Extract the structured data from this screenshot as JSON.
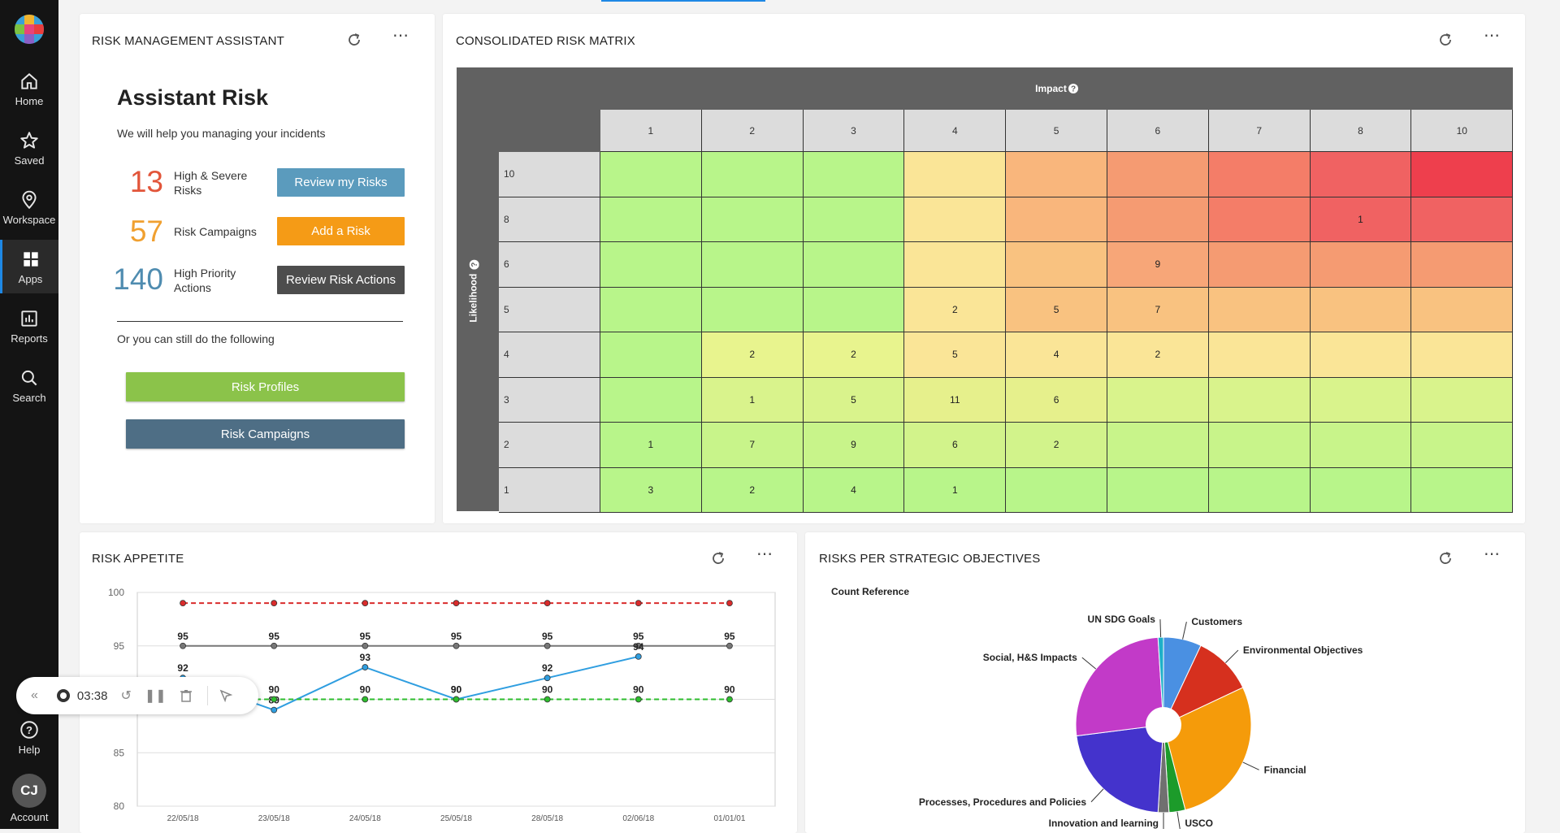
{
  "sidebar": {
    "items": [
      {
        "label": "Home",
        "icon": "home-icon"
      },
      {
        "label": "Saved",
        "icon": "star-icon"
      },
      {
        "label": "Workspace",
        "icon": "location-pin-icon"
      },
      {
        "label": "Apps",
        "icon": "apps-grid-icon"
      },
      {
        "label": "Reports",
        "icon": "bar-chart-icon"
      },
      {
        "label": "Search",
        "icon": "search-icon"
      }
    ],
    "help_label": "Help",
    "account_initials": "CJ",
    "account_label": "Account"
  },
  "assistant": {
    "title": "RISK MANAGEMENT ASSISTANT",
    "heading": "Assistant Risk",
    "subtitle": "We will help you managing your incidents",
    "stats": [
      {
        "value": "13",
        "label": "High & Severe Risks",
        "color": "#e2553a",
        "button": "Review my Risks",
        "button_color": "#5b9bbd"
      },
      {
        "value": "57",
        "label": "Risk Campaigns",
        "color": "#f0a030",
        "button": "Add a Risk",
        "button_color": "#f59b16"
      },
      {
        "value": "140",
        "label": "High Priority Actions",
        "color": "#4f8cb0",
        "button": "Review Risk Actions",
        "button_color": "#4d4d4d"
      }
    ],
    "alt_text": "Or you can still do the following",
    "btn_profiles": "Risk Profiles",
    "btn_campaigns": "Risk Campaigns"
  },
  "matrix": {
    "title": "CONSOLIDATED RISK MATRIX",
    "impact_label": "Impact",
    "likelihood_label": "Likelihood",
    "columns": [
      "1",
      "2",
      "3",
      "4",
      "5",
      "6",
      "7",
      "8",
      "10"
    ],
    "rows": [
      "10",
      "8",
      "6",
      "5",
      "4",
      "3",
      "2",
      "1"
    ],
    "colors": [
      [
        "#b8f58a",
        "#b8f58a",
        "#b8f58a",
        "#fae597",
        "#f9b67c",
        "#f59b72",
        "#f47d68",
        "#f06262",
        "#ee3f4d"
      ],
      [
        "#b8f58a",
        "#b8f58a",
        "#b8f58a",
        "#fae597",
        "#f9b67c",
        "#f59b72",
        "#f47d68",
        "#f06262",
        "#f06262"
      ],
      [
        "#b8f58a",
        "#b8f58a",
        "#b8f58a",
        "#fae597",
        "#f9c280",
        "#f7a678",
        "#f59b72",
        "#f59b72",
        "#f59b72"
      ],
      [
        "#b8f58a",
        "#b8f58a",
        "#b8f58a",
        "#fae597",
        "#f9c280",
        "#f9c280",
        "#f9c280",
        "#f9c280",
        "#f9c280"
      ],
      [
        "#b8f58a",
        "#e8f48e",
        "#e8f48e",
        "#fae597",
        "#fae597",
        "#fae597",
        "#fae597",
        "#fae597",
        "#fae597"
      ],
      [
        "#b8f58a",
        "#d9f38c",
        "#d9f38c",
        "#e6f08c",
        "#e6f08c",
        "#d9f38c",
        "#d9f38c",
        "#d9f38c",
        "#d9f38c"
      ],
      [
        "#b8f58a",
        "#c8f48a",
        "#c8f48a",
        "#d2f38b",
        "#d2f38b",
        "#c8f48a",
        "#c8f48a",
        "#c8f48a",
        "#c8f48a"
      ],
      [
        "#b8f58a",
        "#b8f58a",
        "#b8f58a",
        "#b8f58a",
        "#b8f58a",
        "#b8f58a",
        "#b8f58a",
        "#b8f58a",
        "#b8f58a"
      ]
    ],
    "values": [
      [
        "",
        "",
        "",
        "",
        "",
        "",
        "",
        "",
        ""
      ],
      [
        "",
        "",
        "",
        "",
        "",
        "",
        "",
        "1",
        ""
      ],
      [
        "",
        "",
        "",
        "",
        "",
        "9",
        "",
        "",
        ""
      ],
      [
        "",
        "",
        "",
        "2",
        "5",
        "7",
        "",
        "",
        ""
      ],
      [
        "",
        "2",
        "2",
        "5",
        "4",
        "2",
        "",
        "",
        ""
      ],
      [
        "",
        "1",
        "5",
        "11",
        "6",
        "",
        "",
        "",
        ""
      ],
      [
        "1",
        "7",
        "9",
        "6",
        "2",
        "",
        "",
        "",
        ""
      ],
      [
        "3",
        "2",
        "4",
        "1",
        "",
        "",
        "",
        "",
        ""
      ]
    ]
  },
  "appetite": {
    "title": "RISK APPETITE",
    "chart_data": {
      "type": "line",
      "x": [
        "22/05/18",
        "23/05/18",
        "24/05/18",
        "25/05/18",
        "28/05/18",
        "02/06/18",
        "01/01/01"
      ],
      "yticks": [
        "100",
        "95",
        "90",
        "85",
        "80"
      ],
      "ylim": [
        80,
        100
      ],
      "series": [
        {
          "values": [
            99,
            99,
            99,
            99,
            99,
            99,
            99
          ],
          "color": "#d92b2b",
          "dashed": true,
          "show_labels": false
        },
        {
          "values": [
            95,
            95,
            95,
            95,
            95,
            95,
            95
          ],
          "color": "#777777",
          "dashed": false,
          "show_labels": true
        },
        {
          "values": [
            92,
            89,
            93,
            90,
            92,
            94,
            null
          ],
          "color": "#2f9ee0",
          "dashed": false,
          "show_labels": true
        },
        {
          "values": [
            90,
            90,
            90,
            90,
            90,
            90,
            90
          ],
          "color": "#2dbd2d",
          "dashed": true,
          "show_labels": true
        }
      ]
    }
  },
  "strategic": {
    "title": "RISKS PER STRATEGIC OBJECTIVES",
    "legend_title": "Count Reference",
    "chart_data": {
      "type": "pie",
      "slices": [
        {
          "label": "Customers",
          "value": 7,
          "color": "#4a90e2"
        },
        {
          "label": "Environmental Objectives",
          "value": 11,
          "color": "#d6301e"
        },
        {
          "label": "Financial",
          "value": 28,
          "color": "#f59b0a"
        },
        {
          "label": "USCO",
          "value": 3,
          "color": "#1c9b2a"
        },
        {
          "label": "Innovation and learning",
          "value": 2,
          "color": "#707070"
        },
        {
          "label": "Processes, Procedures and Policies",
          "value": 22,
          "color": "#4433cc"
        },
        {
          "label": "Social, H&S Impacts",
          "value": 26,
          "color": "#c23ac8"
        },
        {
          "label": "UN SDG Goals",
          "value": 1,
          "color": "#1fb0c8"
        }
      ]
    }
  },
  "recorder": {
    "time": "03:38"
  }
}
